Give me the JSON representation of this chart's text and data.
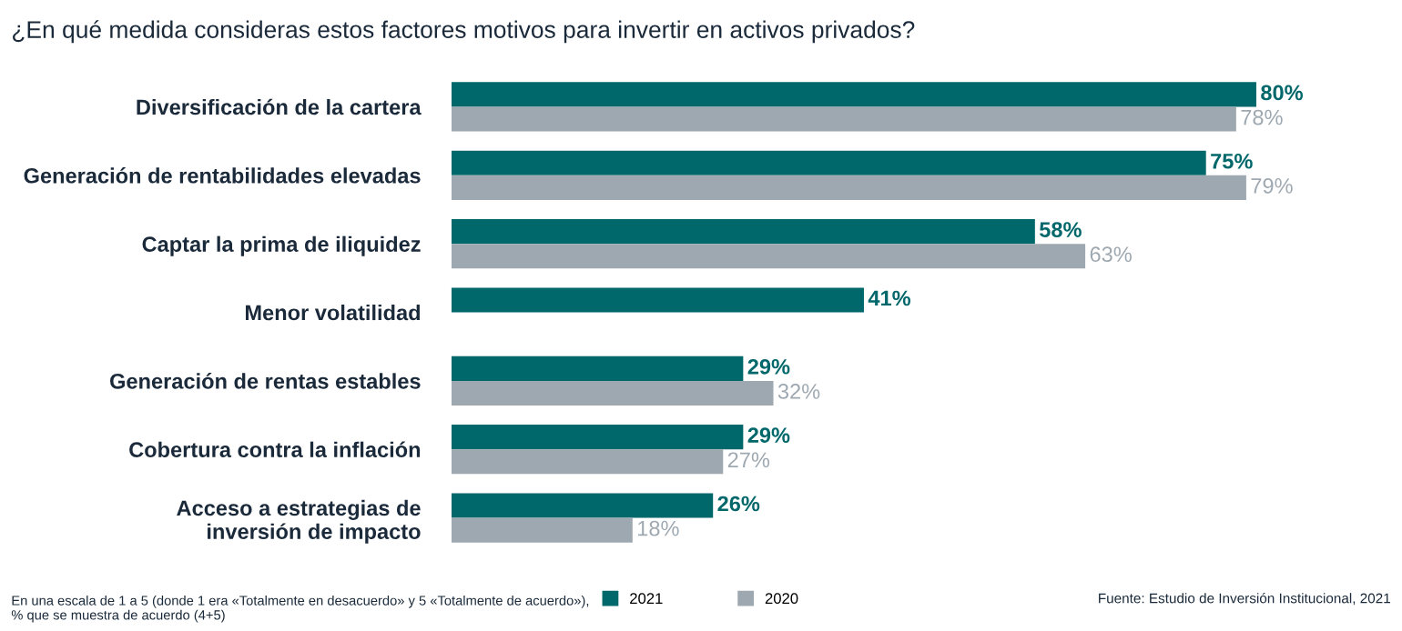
{
  "chart_data": {
    "type": "bar",
    "orientation": "horizontal",
    "title": "¿En qué medida consideras estos factores motivos para invertir en activos privados?",
    "categories": [
      "Diversificación de la cartera",
      "Generación de rentabilidades elevadas",
      "Captar la prima de iliquidez",
      "Menor volatilidad",
      "Generación de rentas estables",
      "Cobertura contra la inflación",
      "Acceso a estrategias de\ninversión de impacto"
    ],
    "series": [
      {
        "name": "2021",
        "color": "#00676b",
        "values": [
          80,
          75,
          58,
          41,
          29,
          29,
          26
        ],
        "value_labels": [
          "80%",
          "75%",
          "58%",
          "41%",
          "29%",
          "29%",
          "26%"
        ]
      },
      {
        "name": "2020",
        "color": "#9ea8b1",
        "values": [
          78,
          79,
          63,
          null,
          32,
          27,
          18
        ],
        "value_labels": [
          "78%",
          "79%",
          "63%",
          null,
          "32%",
          "27%",
          "18%"
        ]
      }
    ],
    "legend": "bottom",
    "annotations": [
      "En una escala de 1 a 5 (donde 1 era «Totalmente en desacuerdo» y 5 «Totalmente de acuerdo»),\n% que se muestra de acuerdo (4+5)",
      "Fuente: Estudio de Inversión Institucional, 2021"
    ]
  }
}
